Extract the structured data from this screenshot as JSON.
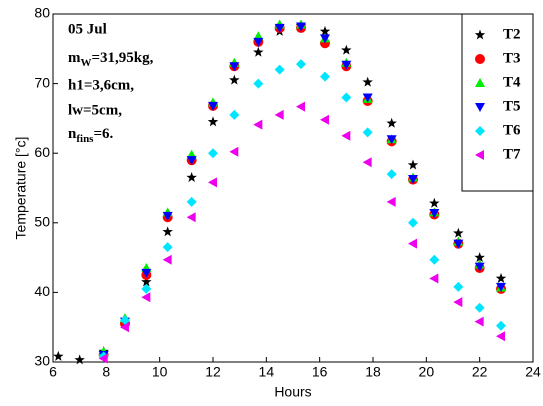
{
  "chart_data": {
    "type": "scatter",
    "x_label": "Hours",
    "y_label": "Temperature [°c]",
    "annotation": [
      "05 Jul",
      [
        "m",
        "W",
        "=31,95kg,"
      ],
      "h1=3,6cm,",
      "lw=5cm,",
      [
        "n",
        "fins",
        "=6."
      ]
    ],
    "x": [
      6.2,
      7.0,
      7.9,
      8.7,
      9.5,
      10.3,
      11.2,
      12.0,
      12.8,
      13.7,
      14.5,
      15.3,
      16.2,
      17.0,
      17.8,
      18.7,
      19.5,
      20.3,
      21.2,
      22.0,
      22.8
    ],
    "xlim": [
      6,
      24
    ],
    "xticks": [
      6,
      8,
      10,
      12,
      14,
      16,
      18,
      20,
      22,
      24
    ],
    "ylim": [
      30,
      80
    ],
    "yticks": [
      30,
      40,
      50,
      60,
      70,
      80
    ],
    "series": [
      {
        "name": "T2",
        "color": "#000000",
        "marker": "star",
        "values": [
          30.8,
          30.3,
          31.5,
          35.5,
          41.5,
          48.7,
          56.5,
          64.5,
          70.5,
          74.5,
          77.5,
          78.3,
          77.5,
          74.8,
          70.2,
          64.3,
          58.3,
          52.8,
          48.5,
          45,
          42
        ]
      },
      {
        "name": "T3",
        "color": "#ff0000",
        "marker": "circle",
        "values": [
          null,
          null,
          31,
          35.5,
          42.5,
          50.8,
          59,
          66.8,
          72.5,
          76,
          78,
          78,
          75.8,
          72.5,
          67.5,
          61.7,
          56.2,
          51.2,
          47,
          43.5,
          40.5
        ]
      },
      {
        "name": "T4",
        "color": "#00ee00",
        "marker": "triangle-up",
        "values": [
          null,
          null,
          31.5,
          36.3,
          43.5,
          51.5,
          59.8,
          67.3,
          73,
          76.8,
          78.5,
          78.5,
          76.5,
          73,
          67.8,
          62,
          56.5,
          51.5,
          47.3,
          44,
          40.7
        ]
      },
      {
        "name": "T5",
        "color": "#0000ff",
        "marker": "triangle-down",
        "values": [
          null,
          null,
          31,
          35.8,
          42.8,
          51,
          59,
          66.8,
          72.5,
          76,
          78,
          78.2,
          76.5,
          72.7,
          68,
          62,
          56.3,
          51.4,
          47,
          43.7,
          40.8
        ]
      },
      {
        "name": "T6",
        "color": "#00e5ff",
        "marker": "diamond",
        "values": [
          null,
          null,
          30.8,
          36,
          40.5,
          46.5,
          53,
          60,
          65.5,
          70,
          72,
          72.8,
          71,
          68,
          63,
          57,
          50,
          44.7,
          40.8,
          37.8,
          35.2
        ]
      },
      {
        "name": "T7",
        "color": "#ee00ee",
        "marker": "triangle-left",
        "values": [
          null,
          null,
          30.5,
          35,
          39.3,
          44.7,
          50.8,
          55.8,
          60.2,
          64.1,
          65.5,
          66.7,
          64.8,
          62.5,
          58.7,
          53,
          47,
          42,
          38.6,
          35.8,
          33.7
        ]
      }
    ]
  }
}
